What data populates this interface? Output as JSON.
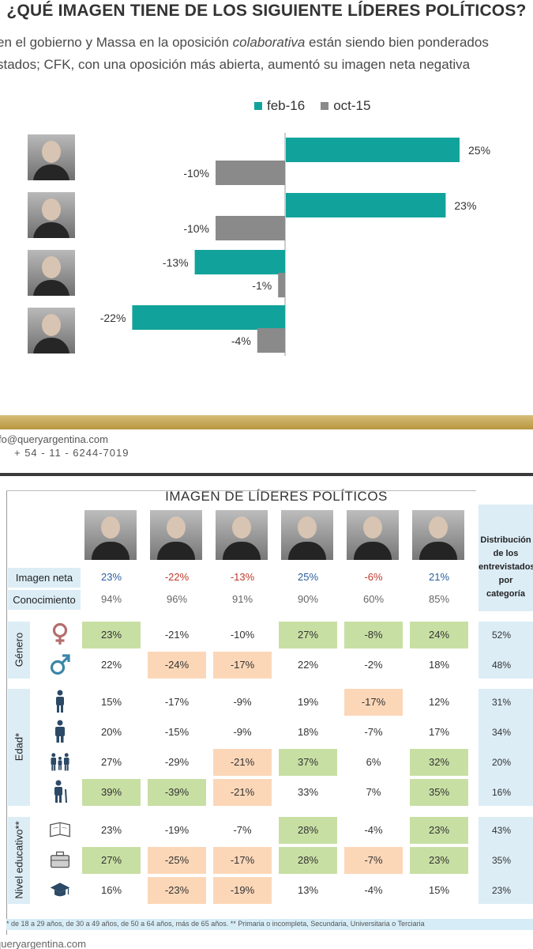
{
  "top": {
    "title": "¿QUÉ IMAGEN TIENE DE LOS SIGUIENTE LÍDERES POLÍTICOS?",
    "subtitle_line1_pre": "en el gobierno y Massa en la oposición ",
    "subtitle_line1_em": "colaborativa",
    "subtitle_line1_post": " están siendo bien ponderados",
    "subtitle_line2": "stados; CFK, con una oposición más abierta, aumentó su imagen neta negativa"
  },
  "chart_data": {
    "type": "bar",
    "orientation": "horizontal",
    "legend_position": "top",
    "series": [
      {
        "name": "feb-16",
        "color": "#11a39b",
        "values": [
          25,
          23,
          -13,
          -22
        ]
      },
      {
        "name": "oct-15",
        "color": "#8a8a8a",
        "values": [
          -10,
          -10,
          -1,
          -4
        ]
      }
    ],
    "value_labels": {
      "feb-16": [
        "25%",
        "23%",
        "-13%",
        "-22%"
      ],
      "oct-15": [
        "-10%",
        "-10%",
        "-1%",
        "-4%"
      ]
    },
    "categories_count": 4,
    "xlim": [
      -25,
      30
    ]
  },
  "contact": {
    "email": "fo@queryargentina.com",
    "phone": "+ 54 - 11 - 6244-7019"
  },
  "table": {
    "title": "IMAGEN DE LÍDERES POLÍTICOS",
    "dist_header": "Distribución de los entrevistados por categoría",
    "imagen_label": "Imagen neta",
    "conocimiento_label": "Conocimiento",
    "imagen_neta": [
      "23%",
      "-22%",
      "-13%",
      "25%",
      "-6%",
      "21%"
    ],
    "conocimiento": [
      "94%",
      "96%",
      "91%",
      "90%",
      "60%",
      "85%"
    ],
    "groups": [
      {
        "label": "Género",
        "rows": [
          {
            "icon": "female-symbol-icon",
            "values": [
              "23%",
              "-21%",
              "-10%",
              "27%",
              "-8%",
              "24%"
            ],
            "hl": [
              "g",
              "",
              "",
              "g",
              "g",
              "g"
            ],
            "dist": "52%"
          },
          {
            "icon": "male-symbol-icon",
            "values": [
              "22%",
              "-24%",
              "-17%",
              "22%",
              "-2%",
              "18%"
            ],
            "hl": [
              "",
              "o",
              "o",
              "",
              "",
              ""
            ],
            "dist": "48%"
          }
        ]
      },
      {
        "label": "Edad*",
        "rows": [
          {
            "icon": "young-person-icon",
            "values": [
              "15%",
              "-17%",
              "-9%",
              "19%",
              "-17%",
              "12%"
            ],
            "hl": [
              "",
              "",
              "",
              "",
              "o",
              ""
            ],
            "dist": "31%"
          },
          {
            "icon": "adult-person-icon",
            "values": [
              "20%",
              "-15%",
              "-9%",
              "18%",
              "-7%",
              "17%"
            ],
            "hl": [
              "",
              "",
              "",
              "",
              "",
              ""
            ],
            "dist": "34%"
          },
          {
            "icon": "family-icon",
            "values": [
              "27%",
              "-29%",
              "-21%",
              "37%",
              "6%",
              "32%"
            ],
            "hl": [
              "",
              "",
              "o",
              "g",
              "",
              "g"
            ],
            "dist": "20%"
          },
          {
            "icon": "elderly-person-icon",
            "values": [
              "39%",
              "-39%",
              "-21%",
              "33%",
              "7%",
              "35%"
            ],
            "hl": [
              "g",
              "g",
              "o",
              "",
              "",
              "g"
            ],
            "dist": "16%"
          }
        ]
      },
      {
        "label": "Nivel educativo**",
        "rows": [
          {
            "icon": "notebook-icon",
            "values": [
              "23%",
              "-19%",
              "-7%",
              "28%",
              "-4%",
              "23%"
            ],
            "hl": [
              "",
              "",
              "",
              "g",
              "",
              "g"
            ],
            "dist": "43%"
          },
          {
            "icon": "briefcase-icon",
            "values": [
              "27%",
              "-25%",
              "-17%",
              "28%",
              "-7%",
              "23%"
            ],
            "hl": [
              "g",
              "o",
              "o",
              "g",
              "o",
              "g"
            ],
            "dist": "35%"
          },
          {
            "icon": "graduation-cap-icon",
            "values": [
              "16%",
              "-23%",
              "-19%",
              "13%",
              "-4%",
              "15%"
            ],
            "hl": [
              "",
              "o",
              "o",
              "",
              "",
              ""
            ],
            "dist": "23%"
          }
        ]
      }
    ],
    "footnote": "* de 18 a 29 años, de 30 a 49 años, de 50 a 64 años, más de 65 años. ** Primaria o incompleta, Secundaria, Universitaria o Terciaria",
    "footer_url": "queryargentina.com"
  }
}
